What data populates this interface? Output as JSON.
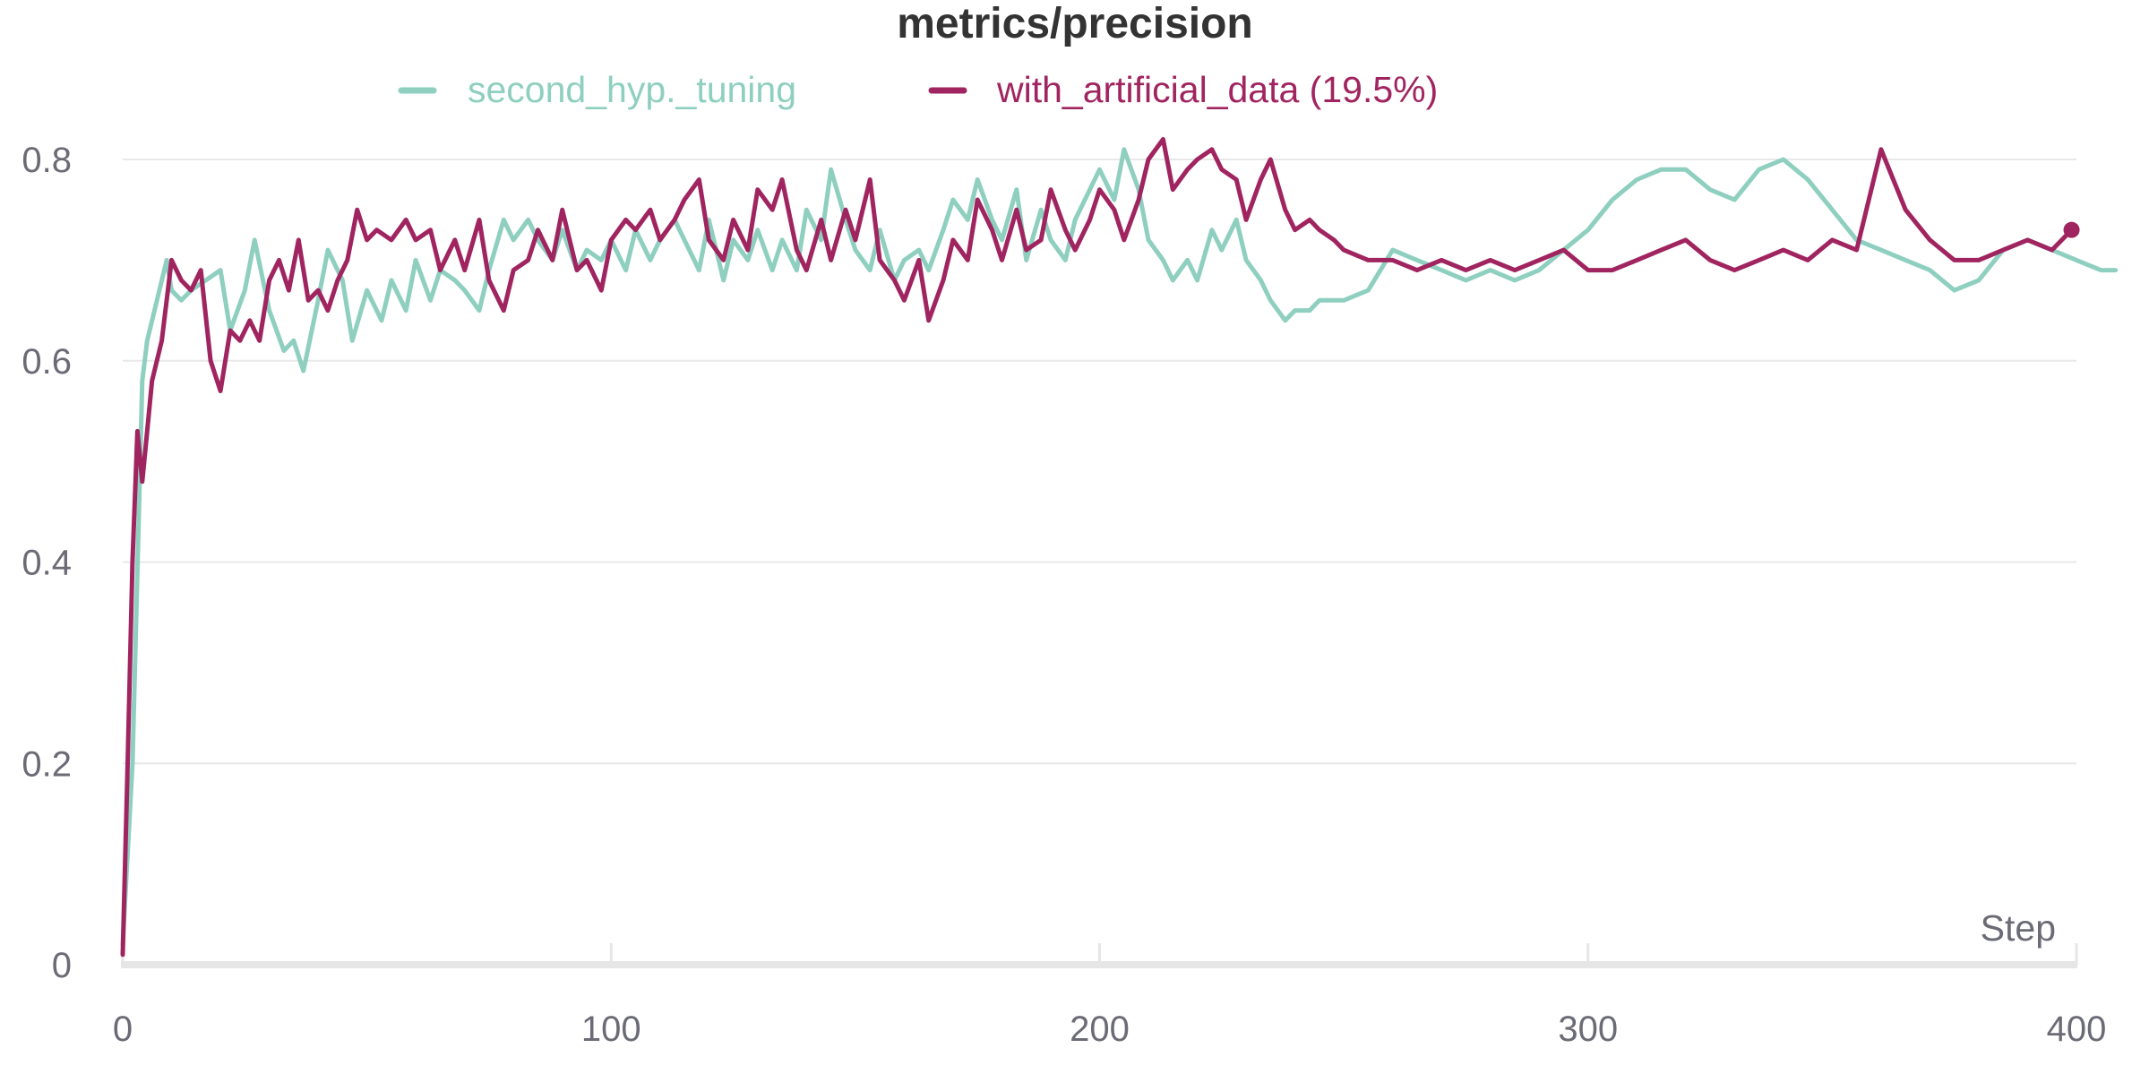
{
  "chart_data": {
    "type": "line",
    "title": "metrics/precision",
    "xlabel": "Step",
    "ylabel": "",
    "xlim": [
      0,
      400
    ],
    "ylim": [
      0,
      0.8
    ],
    "x_ticks": [
      "0",
      "100",
      "200",
      "300",
      "400"
    ],
    "y_ticks": [
      "0",
      "0.2",
      "0.4",
      "0.6",
      "0.8"
    ],
    "grid": true,
    "legend_position": "top",
    "series": [
      {
        "name": "second_hyp._tuning",
        "color": "#8ecfbf",
        "x": [
          0,
          2,
          4,
          5,
          7,
          9,
          10,
          12,
          14,
          17,
          20,
          22,
          25,
          27,
          30,
          33,
          35,
          37,
          40,
          42,
          45,
          47,
          50,
          53,
          55,
          58,
          60,
          63,
          65,
          68,
          70,
          73,
          75,
          78,
          80,
          83,
          85,
          88,
          90,
          93,
          95,
          98,
          100,
          103,
          105,
          108,
          110,
          113,
          115,
          118,
          120,
          123,
          125,
          128,
          130,
          133,
          135,
          138,
          140,
          143,
          145,
          148,
          150,
          153,
          155,
          158,
          160,
          163,
          165,
          168,
          170,
          173,
          175,
          178,
          180,
          183,
          185,
          188,
          190,
          193,
          195,
          198,
          200,
          203,
          205,
          208,
          210,
          213,
          215,
          218,
          220,
          223,
          225,
          228,
          230,
          233,
          235,
          238,
          240,
          243,
          245,
          248,
          250,
          255,
          260,
          265,
          270,
          275,
          280,
          285,
          290,
          295,
          300,
          305,
          310,
          315,
          320,
          325,
          330,
          335,
          340,
          345,
          350,
          355,
          360,
          365,
          370,
          375,
          380,
          385,
          390,
          395,
          400,
          405,
          408
        ],
        "y": [
          0.02,
          0.2,
          0.58,
          0.62,
          0.66,
          0.7,
          0.67,
          0.66,
          0.67,
          0.68,
          0.69,
          0.63,
          0.67,
          0.72,
          0.65,
          0.61,
          0.62,
          0.59,
          0.66,
          0.71,
          0.68,
          0.62,
          0.67,
          0.64,
          0.68,
          0.65,
          0.7,
          0.66,
          0.69,
          0.68,
          0.67,
          0.65,
          0.69,
          0.74,
          0.72,
          0.74,
          0.72,
          0.7,
          0.73,
          0.69,
          0.71,
          0.7,
          0.72,
          0.69,
          0.73,
          0.7,
          0.72,
          0.74,
          0.72,
          0.69,
          0.74,
          0.68,
          0.72,
          0.7,
          0.73,
          0.69,
          0.72,
          0.69,
          0.75,
          0.72,
          0.79,
          0.74,
          0.71,
          0.69,
          0.73,
          0.68,
          0.7,
          0.71,
          0.69,
          0.73,
          0.76,
          0.74,
          0.78,
          0.74,
          0.72,
          0.77,
          0.7,
          0.75,
          0.72,
          0.7,
          0.74,
          0.77,
          0.79,
          0.76,
          0.81,
          0.77,
          0.72,
          0.7,
          0.68,
          0.7,
          0.68,
          0.73,
          0.71,
          0.74,
          0.7,
          0.68,
          0.66,
          0.64,
          0.65,
          0.65,
          0.66,
          0.66,
          0.66,
          0.67,
          0.71,
          0.7,
          0.69,
          0.68,
          0.69,
          0.68,
          0.69,
          0.71,
          0.73,
          0.76,
          0.78,
          0.79,
          0.79,
          0.77,
          0.76,
          0.79,
          0.8,
          0.78,
          0.75,
          0.72,
          0.71,
          0.7,
          0.69,
          0.67,
          0.68,
          0.71,
          0.72,
          0.71,
          0.7,
          0.69,
          0.69
        ]
      },
      {
        "name": "with_artificial_data (19.5%)",
        "color": "#a0245f",
        "x": [
          0,
          1,
          2,
          3,
          4,
          5,
          6,
          8,
          10,
          12,
          14,
          16,
          18,
          20,
          22,
          24,
          26,
          28,
          30,
          32,
          34,
          36,
          38,
          40,
          42,
          44,
          46,
          48,
          50,
          52,
          55,
          58,
          60,
          63,
          65,
          68,
          70,
          73,
          75,
          78,
          80,
          83,
          85,
          88,
          90,
          93,
          95,
          98,
          100,
          103,
          105,
          108,
          110,
          113,
          115,
          118,
          120,
          123,
          125,
          128,
          130,
          133,
          135,
          138,
          140,
          143,
          145,
          148,
          150,
          153,
          155,
          158,
          160,
          163,
          165,
          168,
          170,
          173,
          175,
          178,
          180,
          183,
          185,
          188,
          190,
          193,
          195,
          198,
          200,
          203,
          205,
          208,
          210,
          213,
          215,
          218,
          220,
          223,
          225,
          228,
          230,
          233,
          235,
          238,
          240,
          243,
          245,
          248,
          250,
          255,
          260,
          265,
          270,
          275,
          280,
          285,
          290,
          295,
          300,
          305,
          310,
          315,
          320,
          325,
          330,
          335,
          340,
          345,
          350,
          355,
          360,
          365,
          370,
          375,
          380,
          385,
          390,
          395,
          399
        ],
        "y": [
          0.01,
          0.2,
          0.4,
          0.53,
          0.48,
          0.53,
          0.58,
          0.62,
          0.7,
          0.68,
          0.67,
          0.69,
          0.6,
          0.57,
          0.63,
          0.62,
          0.64,
          0.62,
          0.68,
          0.7,
          0.67,
          0.72,
          0.66,
          0.67,
          0.65,
          0.68,
          0.7,
          0.75,
          0.72,
          0.73,
          0.72,
          0.74,
          0.72,
          0.73,
          0.69,
          0.72,
          0.69,
          0.74,
          0.68,
          0.65,
          0.69,
          0.7,
          0.73,
          0.7,
          0.75,
          0.69,
          0.7,
          0.67,
          0.72,
          0.74,
          0.73,
          0.75,
          0.72,
          0.74,
          0.76,
          0.78,
          0.72,
          0.7,
          0.74,
          0.71,
          0.77,
          0.75,
          0.78,
          0.71,
          0.69,
          0.74,
          0.7,
          0.75,
          0.72,
          0.78,
          0.7,
          0.68,
          0.66,
          0.7,
          0.64,
          0.68,
          0.72,
          0.7,
          0.76,
          0.73,
          0.7,
          0.75,
          0.71,
          0.72,
          0.77,
          0.73,
          0.71,
          0.74,
          0.77,
          0.75,
          0.72,
          0.76,
          0.8,
          0.82,
          0.77,
          0.79,
          0.8,
          0.81,
          0.79,
          0.78,
          0.74,
          0.78,
          0.8,
          0.75,
          0.73,
          0.74,
          0.73,
          0.72,
          0.71,
          0.7,
          0.7,
          0.69,
          0.7,
          0.69,
          0.7,
          0.69,
          0.7,
          0.71,
          0.69,
          0.69,
          0.7,
          0.71,
          0.72,
          0.7,
          0.69,
          0.7,
          0.71,
          0.7,
          0.72,
          0.71,
          0.81,
          0.75,
          0.72,
          0.7,
          0.7,
          0.71,
          0.72,
          0.71,
          0.73
        ]
      }
    ]
  }
}
